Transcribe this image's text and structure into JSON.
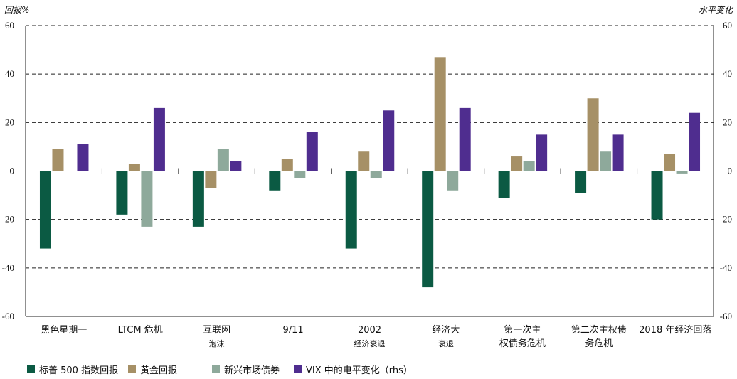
{
  "chart_data": {
    "type": "bar",
    "left_unit_label": "回报%",
    "right_unit_label": "水平变化",
    "ylim": [
      -60,
      60
    ],
    "y2lim": [
      -60,
      60
    ],
    "yticks": [
      60,
      40,
      20,
      0,
      -20,
      -40,
      -60
    ],
    "y2ticks": [
      60,
      40,
      20,
      0,
      -20,
      -40,
      -60
    ],
    "grid": "dashed horizontal",
    "legend_position": "bottom",
    "categories": [
      {
        "line1": "黑色星期一",
        "line2": ""
      },
      {
        "line1": "LTCM 危机",
        "line2": ""
      },
      {
        "line1": "互联网",
        "line2": "泡沫"
      },
      {
        "line1": "9/11",
        "line2": ""
      },
      {
        "line1": "2002",
        "line2": "经济衰退"
      },
      {
        "line1": "经济大",
        "line2": "衰退"
      },
      {
        "line1": "第一次主",
        "line2": "权债务危机"
      },
      {
        "line1": "第二次主权债",
        "line2": "务危机"
      },
      {
        "line1": "2018 年经济回落",
        "line2": ""
      }
    ],
    "series": [
      {
        "name": "标普 500 指数回报",
        "color": "#0b5a43",
        "axis": "left",
        "values": [
          -32,
          -18,
          -23,
          -8,
          -32,
          -48,
          -11,
          -9,
          -20
        ]
      },
      {
        "name": "黄金回报",
        "color": "#a69066",
        "axis": "left",
        "values": [
          9,
          3,
          -7,
          5,
          8,
          47,
          6,
          30,
          7
        ]
      },
      {
        "name": "新兴市场债券",
        "color": "#8ea99b",
        "axis": "left",
        "values": [
          0,
          -23,
          9,
          -3,
          -3,
          -8,
          4,
          8,
          -1
        ]
      },
      {
        "name": "VIX 中的电平变化（rhs）",
        "color": "#4f2d8f",
        "axis": "right",
        "values": [
          11,
          26,
          4,
          16,
          25,
          26,
          15,
          15,
          24
        ]
      }
    ]
  }
}
